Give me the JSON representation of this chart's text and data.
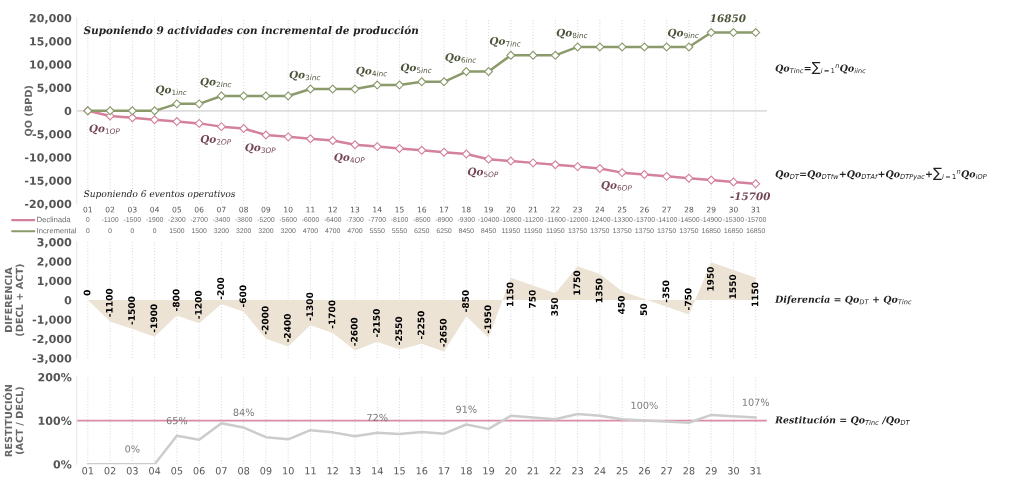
{
  "chart_data": [
    {
      "type": "line",
      "ylabel": "QO (BPD)",
      "categories": [
        "01",
        "02",
        "03",
        "04",
        "05",
        "06",
        "07",
        "08",
        "09",
        "10",
        "11",
        "12",
        "13",
        "14",
        "15",
        "16",
        "17",
        "18",
        "19",
        "20",
        "21",
        "22",
        "23",
        "24",
        "25",
        "26",
        "27",
        "28",
        "29",
        "30",
        "31"
      ],
      "series": [
        {
          "name": "Declinada",
          "color": "#d4819b",
          "values": [
            0,
            -1100,
            -1500,
            -1900,
            -2300,
            -2700,
            -3400,
            -3800,
            -5200,
            -5600,
            -6000,
            -6400,
            -7300,
            -7700,
            -8100,
            -8500,
            -8900,
            -9300,
            -10400,
            -10800,
            -11200,
            -11600,
            -12000,
            -12400,
            -13300,
            -13700,
            -14100,
            -14500,
            -14900,
            -15300,
            -15700
          ],
          "value_labels": [
            "0",
            "-1100",
            "-1500",
            "-1900",
            "-2300",
            "-2700",
            "-3400",
            "-3800",
            "-5200",
            "-5600",
            "-6000",
            "-6400",
            "-7300",
            "-7700",
            "-8100",
            "-8500",
            "-8900",
            "-9300",
            "-10400",
            "-10800",
            "-11200",
            "-11600",
            "-12000",
            "-12400",
            "-13300",
            "-13700",
            "-14100",
            "-14500",
            "-14900",
            "-15300",
            "-15700"
          ]
        },
        {
          "name": "Incremental",
          "color": "#8a9a6b",
          "values": [
            0,
            0,
            0,
            0,
            1500,
            1500,
            3200,
            3200,
            3200,
            3200,
            4700,
            4700,
            4700,
            5550,
            5550,
            6250,
            6250,
            8450,
            8450,
            11950,
            11950,
            11950,
            13750,
            13750,
            13750,
            13750,
            13750,
            13750,
            16850,
            16850,
            16850
          ],
          "value_labels": [
            "0",
            "0",
            "0",
            "0",
            "1500",
            "1500",
            "3200",
            "3200",
            "3200",
            "3200",
            "4700",
            "4700",
            "4700",
            "5550",
            "5550",
            "6250",
            "6250",
            "8450",
            "8450",
            "11950",
            "11950",
            "11950",
            "13750",
            "13750",
            "13750",
            "13750",
            "13750",
            "13750",
            "16850",
            "16850",
            "16850"
          ]
        }
      ],
      "ylim": [
        -20000,
        20000
      ],
      "yticks": [
        {
          "value": -20000,
          "label": "-20,000"
        },
        {
          "value": -15000,
          "label": "-15,000"
        },
        {
          "value": -10000,
          "label": "-10,000"
        },
        {
          "value": -5000,
          "label": "-5,000"
        },
        0,
        {
          "value": 5000,
          "label": "5,000"
        },
        {
          "value": 10000,
          "label": "10,000"
        },
        {
          "value": 15000,
          "label": "15,000"
        },
        {
          "value": 20000,
          "label": "20,000"
        }
      ],
      "ref_lines": [
        {
          "axis": "y",
          "value": 0,
          "color": "#dddddd"
        }
      ],
      "grid": "x",
      "marker": "diamond",
      "legend": "bottom left",
      "annotations": [
        "Suponiendo 9 actividades con incremental de producción",
        "Suponiendo 6 eventos operativos",
        "Qo$_{Tinc}$=∑$_{i=1}$$^{n}$Qo$_{iinc}$",
        "Qo$_{DT}$=Qo$_{DTfw}$+Qo$_{DTAf}$+Qo$_{DTPyac}$+∑$_{i=1}$$^{n}$Qo$_{iOP}$",
        {
          "text": "Qo$_{1inc}$",
          "x": "05",
          "y": 1500
        },
        {
          "text": "Qo$_{2inc}$",
          "x": "07",
          "y": 3200
        },
        {
          "text": "Qo$_{3inc}$",
          "x": "11",
          "y": 4700
        },
        {
          "text": "Qo$_{4inc}$",
          "x": "14",
          "y": 5550
        },
        {
          "text": "Qo$_{5inc}$",
          "x": "16",
          "y": 6250
        },
        {
          "text": "Qo$_{6inc}$",
          "x": "18",
          "y": 8450
        },
        {
          "text": "Qo$_{7inc}$",
          "x": "20",
          "y": 11950
        },
        {
          "text": "Qo$_{8inc}$",
          "x": "23",
          "y": 13750
        },
        {
          "text": "Qo$_{9inc}$",
          "x": "28",
          "y": 13750
        },
        {
          "text": "16850",
          "x": "30",
          "y": 16850
        },
        {
          "text": "Qo$_{1OP}$",
          "x": "02",
          "y": -1100
        },
        {
          "text": "Qo$_{2OP}$",
          "x": "07",
          "y": -3400
        },
        {
          "text": "Qo$_{3OP}$",
          "x": "09",
          "y": -5200
        },
        {
          "text": "Qo$_{4OP}$",
          "x": "13",
          "y": -7300
        },
        {
          "text": "Qo$_{5OP}$",
          "x": "19",
          "y": -10400
        },
        {
          "text": "Qo$_{6OP}$",
          "x": "25",
          "y": -13300
        },
        {
          "text": "-15700",
          "x": "31",
          "y": -15700
        }
      ]
    },
    {
      "type": "area",
      "ylabel": "DIFERENCIA\n(DECL + ACT)",
      "categories": [
        "01",
        "02",
        "03",
        "04",
        "05",
        "06",
        "07",
        "08",
        "09",
        "10",
        "11",
        "12",
        "13",
        "14",
        "15",
        "16",
        "17",
        "18",
        "19",
        "20",
        "21",
        "22",
        "23",
        "24",
        "25",
        "26",
        "27",
        "28",
        "29",
        "30",
        "31"
      ],
      "values": [
        0,
        -1100,
        -1500,
        -1900,
        -800,
        -1200,
        -200,
        -600,
        -2000,
        -2400,
        -1300,
        -1700,
        -2600,
        -2150,
        -2550,
        -2250,
        -2650,
        -850,
        -1950,
        1150,
        750,
        350,
        1750,
        1350,
        450,
        50,
        -350,
        -750,
        1950,
        1550,
        1150
      ],
      "color": "#ece3d5",
      "data_labels": true,
      "ylim": [
        -3000,
        3000
      ],
      "yticks": [
        {
          "value": -3000,
          "label": "-3,000"
        },
        {
          "value": -2000,
          "label": "-2,000"
        },
        {
          "value": -1000,
          "label": "-1,000"
        },
        0,
        {
          "value": 1000,
          "label": "1,000"
        },
        {
          "value": 2000,
          "label": "2,000"
        },
        {
          "value": 3000,
          "label": "3,000"
        }
      ],
      "grid": "x",
      "tick_labels": "y",
      "annotations": [
        "Diferencia = Qo$_{DT}$ + Qo$_{Tinc}$"
      ]
    },
    {
      "type": "line",
      "ylabel": "RESTITUCIÓN\n(ACT / DECL)",
      "categories": [
        "01",
        "02",
        "03",
        "04",
        "05",
        "06",
        "07",
        "08",
        "09",
        "10",
        "11",
        "12",
        "13",
        "14",
        "15",
        "16",
        "17",
        "18",
        "19",
        "20",
        "21",
        "22",
        "23",
        "24",
        "25",
        "26",
        "27",
        "28",
        "29",
        "30",
        "31"
      ],
      "values": [
        0,
        0,
        0,
        0,
        65,
        56,
        94,
        84,
        62,
        57,
        78,
        73,
        64,
        72,
        69,
        74,
        70,
        91,
        81,
        111,
        107,
        103,
        115,
        111,
        103,
        100,
        98,
        95,
        113,
        110,
        107
      ],
      "value_labels": [
        null,
        null,
        "0%",
        null,
        "65%",
        null,
        null,
        "84%",
        null,
        null,
        null,
        null,
        null,
        "72%",
        null,
        null,
        null,
        "91%",
        null,
        null,
        null,
        null,
        null,
        null,
        null,
        "100%",
        null,
        null,
        null,
        null,
        "107%"
      ],
      "color": "#cccccc",
      "ylim": [
        0,
        200
      ],
      "yticks": [
        {
          "value": 0,
          "label": "0%"
        },
        {
          "value": 100,
          "label": "100%"
        },
        {
          "value": 200,
          "label": "200%"
        }
      ],
      "ref_lines": [
        {
          "axis": "y",
          "value": 100,
          "color": "#d98ca3"
        }
      ],
      "grid": "x",
      "annotations": [
        "Restitución = Qo$_{Tinc}$ /Qo$_{DT}$"
      ]
    }
  ]
}
